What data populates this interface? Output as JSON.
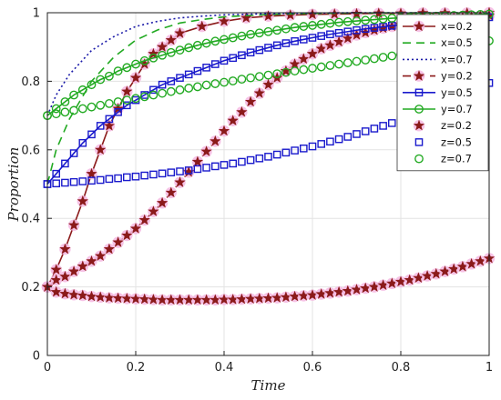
{
  "chart_data": {
    "type": "line",
    "title": "",
    "xlabel": "Time",
    "ylabel": "Proportion",
    "xlim": [
      0,
      1
    ],
    "ylim": [
      0,
      1
    ],
    "xticks": [
      "0",
      "0.2",
      "0.4",
      "0.6",
      "0.8",
      "1"
    ],
    "yticks": [
      "0",
      "0.2",
      "0.4",
      "0.6",
      "0.8",
      "1"
    ],
    "grid": true,
    "legend_position": "top-right",
    "series": [
      {
        "name": "x=0.2",
        "color": "#8b1a1a",
        "line": "solid",
        "marker": "star",
        "marker_color": "#8b1a1a",
        "x": [
          0,
          0.02,
          0.04,
          0.06,
          0.08,
          0.1,
          0.12,
          0.14,
          0.16,
          0.18,
          0.2,
          0.22,
          0.24,
          0.26,
          0.28,
          0.3,
          0.35,
          0.4,
          0.45,
          0.5,
          0.55,
          0.6,
          0.65,
          0.7,
          0.75,
          0.8,
          0.85,
          0.9,
          0.95,
          1
        ],
        "y": [
          0.2,
          0.25,
          0.31,
          0.38,
          0.45,
          0.53,
          0.6,
          0.67,
          0.72,
          0.77,
          0.81,
          0.85,
          0.88,
          0.9,
          0.92,
          0.94,
          0.96,
          0.975,
          0.985,
          0.99,
          0.993,
          0.995,
          0.996,
          0.997,
          0.998,
          0.998,
          0.999,
          0.999,
          0.999,
          1.0
        ]
      },
      {
        "name": "x=0.5",
        "color": "#22aa22",
        "line": "dashed",
        "marker": "none",
        "x": [
          0,
          0.02,
          0.05,
          0.1,
          0.15,
          0.2,
          0.25,
          0.3,
          0.35,
          0.4,
          0.5,
          0.6,
          0.7,
          0.8,
          0.9,
          1
        ],
        "y": [
          0.5,
          0.6,
          0.69,
          0.8,
          0.87,
          0.92,
          0.95,
          0.97,
          0.98,
          0.988,
          0.995,
          0.998,
          0.999,
          1.0,
          1.0,
          1.0
        ]
      },
      {
        "name": "x=0.7",
        "color": "#1a1aa8",
        "line": "dotted",
        "marker": "none",
        "x": [
          0,
          0.02,
          0.05,
          0.1,
          0.15,
          0.2,
          0.25,
          0.3,
          0.35,
          0.4,
          0.5,
          0.6,
          0.7,
          0.8,
          0.9,
          1
        ],
        "y": [
          0.7,
          0.76,
          0.82,
          0.89,
          0.93,
          0.96,
          0.975,
          0.985,
          0.99,
          0.994,
          0.997,
          0.999,
          1.0,
          1.0,
          1.0,
          1.0
        ]
      },
      {
        "name": "y=0.2",
        "color": "#8b1a1a",
        "line": "dashed",
        "marker": "star",
        "marker_color": "#8b1a1a",
        "x": [
          0,
          0.02,
          0.04,
          0.06,
          0.08,
          0.1,
          0.12,
          0.14,
          0.16,
          0.18,
          0.2,
          0.22,
          0.24,
          0.26,
          0.28,
          0.3,
          0.32,
          0.34,
          0.36,
          0.38,
          0.4,
          0.42,
          0.44,
          0.46,
          0.48,
          0.5,
          0.52,
          0.54,
          0.56,
          0.58,
          0.6,
          0.62,
          0.64,
          0.66,
          0.68,
          0.7,
          0.72,
          0.74,
          0.76,
          0.78,
          0.8,
          0.82,
          0.84,
          0.86,
          0.88,
          0.9,
          0.92,
          0.94,
          0.96,
          0.98,
          1
        ],
        "y": [
          0.2,
          0.22,
          0.23,
          0.245,
          0.26,
          0.275,
          0.29,
          0.31,
          0.33,
          0.35,
          0.37,
          0.395,
          0.42,
          0.445,
          0.475,
          0.505,
          0.535,
          0.565,
          0.595,
          0.625,
          0.655,
          0.685,
          0.71,
          0.74,
          0.765,
          0.79,
          0.81,
          0.83,
          0.85,
          0.865,
          0.88,
          0.895,
          0.905,
          0.915,
          0.925,
          0.935,
          0.942,
          0.949,
          0.955,
          0.96,
          0.965,
          0.969,
          0.973,
          0.976,
          0.979,
          0.982,
          0.984,
          0.986,
          0.988,
          0.99,
          0.992
        ]
      },
      {
        "name": "y=0.5",
        "color": "#1a1acc",
        "line": "solid",
        "marker": "square",
        "marker_color": "#1a1acc",
        "x": [
          0,
          0.02,
          0.04,
          0.06,
          0.08,
          0.1,
          0.12,
          0.14,
          0.16,
          0.18,
          0.2,
          0.22,
          0.24,
          0.26,
          0.28,
          0.3,
          0.32,
          0.34,
          0.36,
          0.38,
          0.4,
          0.42,
          0.44,
          0.46,
          0.48,
          0.5,
          0.52,
          0.54,
          0.56,
          0.58,
          0.6,
          0.62,
          0.64,
          0.66,
          0.68,
          0.7,
          0.72,
          0.74,
          0.76,
          0.78,
          0.8,
          0.82,
          0.84,
          0.86,
          0.88,
          0.9,
          0.92,
          0.94,
          0.96,
          0.98,
          1
        ],
        "y": [
          0.5,
          0.53,
          0.56,
          0.59,
          0.62,
          0.645,
          0.67,
          0.69,
          0.71,
          0.73,
          0.745,
          0.76,
          0.775,
          0.79,
          0.8,
          0.81,
          0.82,
          0.83,
          0.84,
          0.85,
          0.86,
          0.868,
          0.876,
          0.884,
          0.891,
          0.898,
          0.905,
          0.911,
          0.917,
          0.922,
          0.927,
          0.932,
          0.937,
          0.941,
          0.945,
          0.949,
          0.953,
          0.956,
          0.959,
          0.962,
          0.965,
          0.968,
          0.97,
          0.973,
          0.975,
          0.977,
          0.979,
          0.981,
          0.983,
          0.985,
          0.987
        ]
      },
      {
        "name": "y=0.7",
        "color": "#22aa22",
        "line": "solid",
        "marker": "circle",
        "marker_color": "#22aa22",
        "x": [
          0,
          0.02,
          0.04,
          0.06,
          0.08,
          0.1,
          0.12,
          0.14,
          0.16,
          0.18,
          0.2,
          0.22,
          0.24,
          0.26,
          0.28,
          0.3,
          0.32,
          0.34,
          0.36,
          0.38,
          0.4,
          0.42,
          0.44,
          0.46,
          0.48,
          0.5,
          0.52,
          0.54,
          0.56,
          0.58,
          0.6,
          0.62,
          0.64,
          0.66,
          0.68,
          0.7,
          0.72,
          0.74,
          0.76,
          0.78,
          0.8,
          0.82,
          0.84,
          0.86,
          0.88,
          0.9,
          0.92,
          0.94,
          0.96,
          0.98,
          1
        ],
        "y": [
          0.7,
          0.72,
          0.74,
          0.76,
          0.775,
          0.79,
          0.805,
          0.815,
          0.83,
          0.84,
          0.85,
          0.86,
          0.868,
          0.876,
          0.884,
          0.891,
          0.898,
          0.905,
          0.911,
          0.917,
          0.922,
          0.927,
          0.932,
          0.937,
          0.941,
          0.945,
          0.949,
          0.953,
          0.957,
          0.96,
          0.963,
          0.966,
          0.969,
          0.972,
          0.974,
          0.976,
          0.978,
          0.98,
          0.982,
          0.984,
          0.985,
          0.987,
          0.988,
          0.989,
          0.99,
          0.991,
          0.992,
          0.993,
          0.994,
          0.995,
          0.996
        ]
      },
      {
        "name": "z=0.2",
        "color": "#8b1a1a",
        "line": "none",
        "marker": "star",
        "marker_color": "#8b1a1a",
        "x": [
          0,
          0.02,
          0.04,
          0.06,
          0.08,
          0.1,
          0.12,
          0.14,
          0.16,
          0.18,
          0.2,
          0.22,
          0.24,
          0.26,
          0.28,
          0.3,
          0.32,
          0.34,
          0.36,
          0.38,
          0.4,
          0.42,
          0.44,
          0.46,
          0.48,
          0.5,
          0.52,
          0.54,
          0.56,
          0.58,
          0.6,
          0.62,
          0.64,
          0.66,
          0.68,
          0.7,
          0.72,
          0.74,
          0.76,
          0.78,
          0.8,
          0.82,
          0.84,
          0.86,
          0.88,
          0.9,
          0.92,
          0.94,
          0.96,
          0.98,
          1
        ],
        "y": [
          0.2,
          0.185,
          0.18,
          0.177,
          0.175,
          0.172,
          0.17,
          0.168,
          0.167,
          0.166,
          0.165,
          0.164,
          0.163,
          0.162,
          0.162,
          0.162,
          0.162,
          0.162,
          0.162,
          0.162,
          0.163,
          0.163,
          0.164,
          0.165,
          0.166,
          0.167,
          0.168,
          0.17,
          0.172,
          0.174,
          0.176,
          0.179,
          0.182,
          0.185,
          0.188,
          0.192,
          0.196,
          0.2,
          0.205,
          0.21,
          0.215,
          0.22,
          0.226,
          0.232,
          0.238,
          0.245,
          0.252,
          0.259,
          0.267,
          0.275,
          0.283
        ]
      },
      {
        "name": "z=0.5",
        "color": "#1a1acc",
        "line": "none",
        "marker": "square",
        "marker_color": "#1a1acc",
        "x": [
          0,
          0.02,
          0.04,
          0.06,
          0.08,
          0.1,
          0.12,
          0.14,
          0.16,
          0.18,
          0.2,
          0.22,
          0.24,
          0.26,
          0.28,
          0.3,
          0.32,
          0.34,
          0.36,
          0.38,
          0.4,
          0.42,
          0.44,
          0.46,
          0.48,
          0.5,
          0.52,
          0.54,
          0.56,
          0.58,
          0.6,
          0.62,
          0.64,
          0.66,
          0.68,
          0.7,
          0.72,
          0.74,
          0.76,
          0.78,
          0.8,
          0.82,
          0.84,
          0.86,
          0.88,
          0.9,
          0.92,
          0.94,
          0.96,
          0.98,
          1
        ],
        "y": [
          0.5,
          0.502,
          0.504,
          0.506,
          0.508,
          0.51,
          0.512,
          0.515,
          0.517,
          0.52,
          0.522,
          0.525,
          0.528,
          0.531,
          0.534,
          0.537,
          0.54,
          0.544,
          0.548,
          0.552,
          0.556,
          0.56,
          0.565,
          0.57,
          0.575,
          0.58,
          0.586,
          0.592,
          0.598,
          0.604,
          0.61,
          0.617,
          0.624,
          0.631,
          0.638,
          0.646,
          0.654,
          0.662,
          0.67,
          0.678,
          0.687,
          0.696,
          0.705,
          0.714,
          0.723,
          0.733,
          0.743,
          0.753,
          0.763,
          0.774,
          0.795
        ]
      },
      {
        "name": "z=0.7",
        "color": "#22aa22",
        "line": "none",
        "marker": "circle",
        "marker_color": "#22aa22",
        "x": [
          0,
          0.02,
          0.04,
          0.06,
          0.08,
          0.1,
          0.12,
          0.14,
          0.16,
          0.18,
          0.2,
          0.22,
          0.24,
          0.26,
          0.28,
          0.3,
          0.32,
          0.34,
          0.36,
          0.38,
          0.4,
          0.42,
          0.44,
          0.46,
          0.48,
          0.5,
          0.52,
          0.54,
          0.56,
          0.58,
          0.6,
          0.62,
          0.64,
          0.66,
          0.68,
          0.7,
          0.72,
          0.74,
          0.76,
          0.78,
          0.8,
          0.82,
          0.84,
          0.86,
          0.88,
          0.9,
          0.92,
          0.94,
          0.96,
          0.98,
          1
        ],
        "y": [
          0.7,
          0.705,
          0.71,
          0.715,
          0.72,
          0.725,
          0.73,
          0.735,
          0.74,
          0.745,
          0.75,
          0.755,
          0.76,
          0.765,
          0.77,
          0.775,
          0.78,
          0.784,
          0.789,
          0.793,
          0.797,
          0.801,
          0.806,
          0.81,
          0.814,
          0.818,
          0.822,
          0.826,
          0.83,
          0.834,
          0.838,
          0.842,
          0.846,
          0.85,
          0.854,
          0.858,
          0.862,
          0.866,
          0.87,
          0.874,
          0.878,
          0.882,
          0.886,
          0.89,
          0.894,
          0.898,
          0.902,
          0.906,
          0.91,
          0.914,
          0.918
        ]
      }
    ]
  }
}
